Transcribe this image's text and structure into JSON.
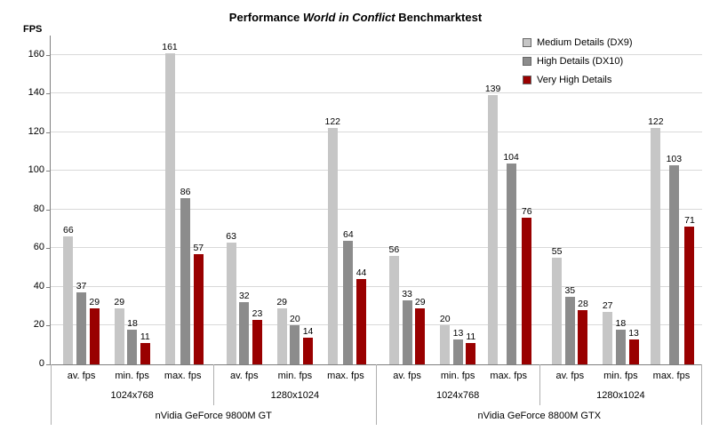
{
  "title": {
    "prefix": "Performance ",
    "italic": "World in Conflict",
    "suffix": " Benchmarktest"
  },
  "y_axis_title": "FPS",
  "chart_data": {
    "type": "bar",
    "title": "Performance World in Conflict Benchmarktest",
    "ylabel": "FPS",
    "ylim": [
      0,
      170
    ],
    "yticks": [
      0,
      20,
      40,
      60,
      80,
      100,
      120,
      140,
      160
    ],
    "grid": true,
    "legend_position": "top-right",
    "series_names": [
      "Medium Details (DX9)",
      "High Details (DX10)",
      "Very High Details"
    ],
    "series_colors": [
      "#c6c6c6",
      "#8c8c8c",
      "#990000"
    ],
    "gpus": [
      {
        "name": "nVidia GeForce 9800M GT",
        "resolutions": [
          {
            "name": "1024x768",
            "metrics": [
              {
                "label": "av. fps",
                "values": [
                  66,
                  37,
                  29
                ]
              },
              {
                "label": "min. fps",
                "values": [
                  29,
                  18,
                  11
                ]
              },
              {
                "label": "max. fps",
                "values": [
                  161,
                  86,
                  57
                ]
              }
            ]
          },
          {
            "name": "1280x1024",
            "metrics": [
              {
                "label": "av. fps",
                "values": [
                  63,
                  32,
                  23
                ]
              },
              {
                "label": "min. fps",
                "values": [
                  29,
                  20,
                  14
                ]
              },
              {
                "label": "max. fps",
                "values": [
                  122,
                  64,
                  44
                ]
              }
            ]
          }
        ]
      },
      {
        "name": "nVidia GeForce 8800M GTX",
        "resolutions": [
          {
            "name": "1024x768",
            "metrics": [
              {
                "label": "av. fps",
                "values": [
                  56,
                  33,
                  29
                ]
              },
              {
                "label": "min. fps",
                "values": [
                  20,
                  13,
                  11
                ]
              },
              {
                "label": "max. fps",
                "values": [
                  139,
                  104,
                  76
                ]
              }
            ]
          },
          {
            "name": "1280x1024",
            "metrics": [
              {
                "label": "av. fps",
                "values": [
                  55,
                  35,
                  28
                ]
              },
              {
                "label": "min. fps",
                "values": [
                  27,
                  18,
                  13
                ]
              },
              {
                "label": "max. fps",
                "values": [
                  122,
                  103,
                  71
                ]
              }
            ]
          }
        ]
      }
    ]
  }
}
